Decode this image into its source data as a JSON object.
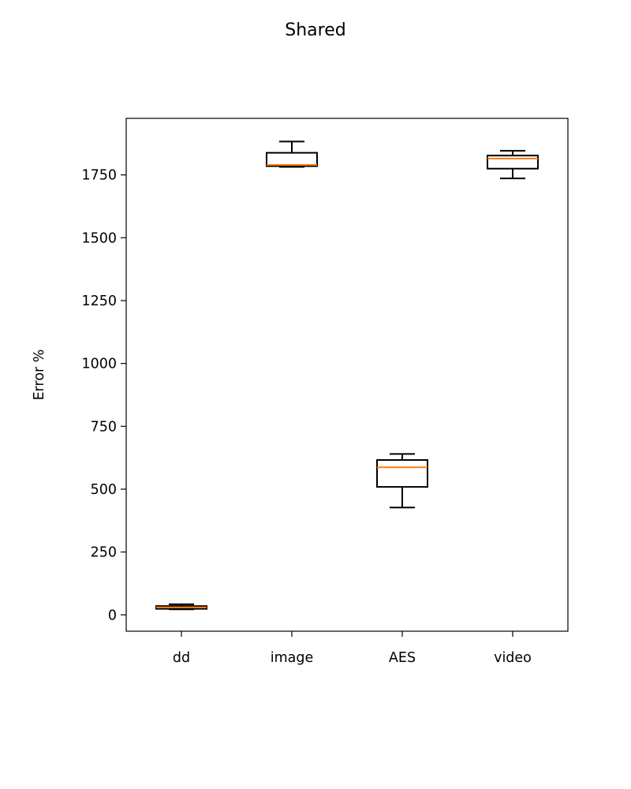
{
  "chart_data": {
    "type": "box",
    "title": "Shared",
    "xlabel": "",
    "ylabel": "Error %",
    "ylim": [
      -65,
      1975
    ],
    "yticks": [
      0,
      250,
      500,
      750,
      1000,
      1250,
      1500,
      1750
    ],
    "grid": false,
    "categories": [
      "dd",
      "image",
      "AES",
      "video"
    ],
    "boxes": [
      {
        "name": "dd",
        "whisker_low": 22,
        "q1": 24,
        "median": 30,
        "q3": 35,
        "whisker_high": 42
      },
      {
        "name": "image",
        "whisker_low": 1782,
        "q1": 1785,
        "median": 1790,
        "q3": 1838,
        "whisker_high": 1883
      },
      {
        "name": "AES",
        "whisker_low": 427,
        "q1": 509,
        "median": 587,
        "q3": 616,
        "whisker_high": 640
      },
      {
        "name": "video",
        "whisker_low": 1736,
        "q1": 1775,
        "median": 1815,
        "q3": 1827,
        "whisker_high": 1846
      }
    ],
    "colors": {
      "box": "#000000",
      "median": "#ff7f0e",
      "axes": "#000000"
    }
  }
}
